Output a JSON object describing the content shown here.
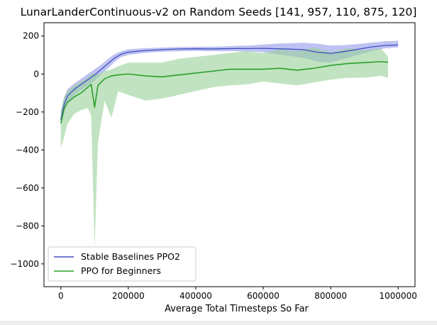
{
  "chart_data": {
    "type": "line",
    "title": "LunarLanderContinuous-v2 on Random Seeds [141, 957, 110, 875, 120]",
    "xlabel": "Average Total Timesteps So Far",
    "ylabel": "",
    "xlim": [
      -50000,
      1050000
    ],
    "ylim": [
      -1120,
      270
    ],
    "xticks": [
      0,
      200000,
      400000,
      600000,
      800000,
      1000000
    ],
    "yticks": [
      -1000,
      -800,
      -600,
      -400,
      -200,
      0,
      200
    ],
    "grid": false,
    "legend_position": "lower-left",
    "series": [
      {
        "name": "Stable Baselines PPO2",
        "color": "#4050c0",
        "band_color": "#8890e8",
        "x": [
          0,
          10000,
          20000,
          40000,
          60000,
          80000,
          100000,
          120000,
          140000,
          160000,
          180000,
          200000,
          240000,
          280000,
          320000,
          360000,
          400000,
          440000,
          480000,
          520000,
          560000,
          600000,
          640000,
          680000,
          720000,
          760000,
          800000,
          840000,
          880000,
          920000,
          960000,
          1000000
        ],
        "y": [
          -240,
          -160,
          -115,
          -80,
          -55,
          -30,
          -5,
          25,
          55,
          85,
          105,
          115,
          122,
          126,
          130,
          132,
          133,
          132,
          133,
          134,
          134,
          135,
          133,
          131,
          128,
          115,
          108,
          118,
          130,
          142,
          150,
          153
        ],
        "y_lower": [
          -280,
          -200,
          -150,
          -110,
          -85,
          -60,
          -35,
          0,
          30,
          65,
          90,
          100,
          110,
          115,
          118,
          120,
          122,
          120,
          120,
          120,
          118,
          115,
          105,
          95,
          85,
          65,
          60,
          80,
          100,
          120,
          135,
          140
        ],
        "y_upper": [
          -200,
          -120,
          -80,
          -50,
          -25,
          0,
          25,
          50,
          80,
          105,
          120,
          130,
          135,
          138,
          140,
          142,
          143,
          144,
          145,
          148,
          150,
          155,
          160,
          162,
          165,
          160,
          150,
          152,
          158,
          165,
          172,
          175
        ]
      },
      {
        "name": "PPO for Beginners",
        "color": "#2ca02c",
        "band_color": "#98d098",
        "x": [
          0,
          10000,
          20000,
          40000,
          60000,
          80000,
          90000,
          100000,
          110000,
          130000,
          150000,
          170000,
          200000,
          250000,
          300000,
          350000,
          400000,
          450000,
          500000,
          550000,
          600000,
          650000,
          700000,
          750000,
          800000,
          850000,
          900000,
          950000,
          970000
        ],
        "y": [
          -260,
          -180,
          -150,
          -120,
          -100,
          -70,
          -55,
          -175,
          -60,
          -25,
          -10,
          -5,
          0,
          -10,
          -15,
          -5,
          5,
          15,
          25,
          25,
          25,
          30,
          20,
          30,
          45,
          55,
          60,
          65,
          62
        ],
        "y_lower": [
          -390,
          -330,
          -260,
          -210,
          -190,
          -180,
          -220,
          -920,
          -360,
          -140,
          -230,
          -90,
          -110,
          -140,
          -130,
          -110,
          -90,
          -70,
          -60,
          -55,
          -40,
          -50,
          -60,
          -45,
          -30,
          -20,
          -20,
          -10,
          -20
        ],
        "y_upper": [
          -190,
          -120,
          -90,
          -60,
          -40,
          -20,
          0,
          0,
          0,
          15,
          25,
          40,
          60,
          60,
          60,
          80,
          90,
          100,
          110,
          120,
          110,
          130,
          120,
          140,
          115,
          135,
          125,
          135,
          90
        ]
      }
    ]
  }
}
